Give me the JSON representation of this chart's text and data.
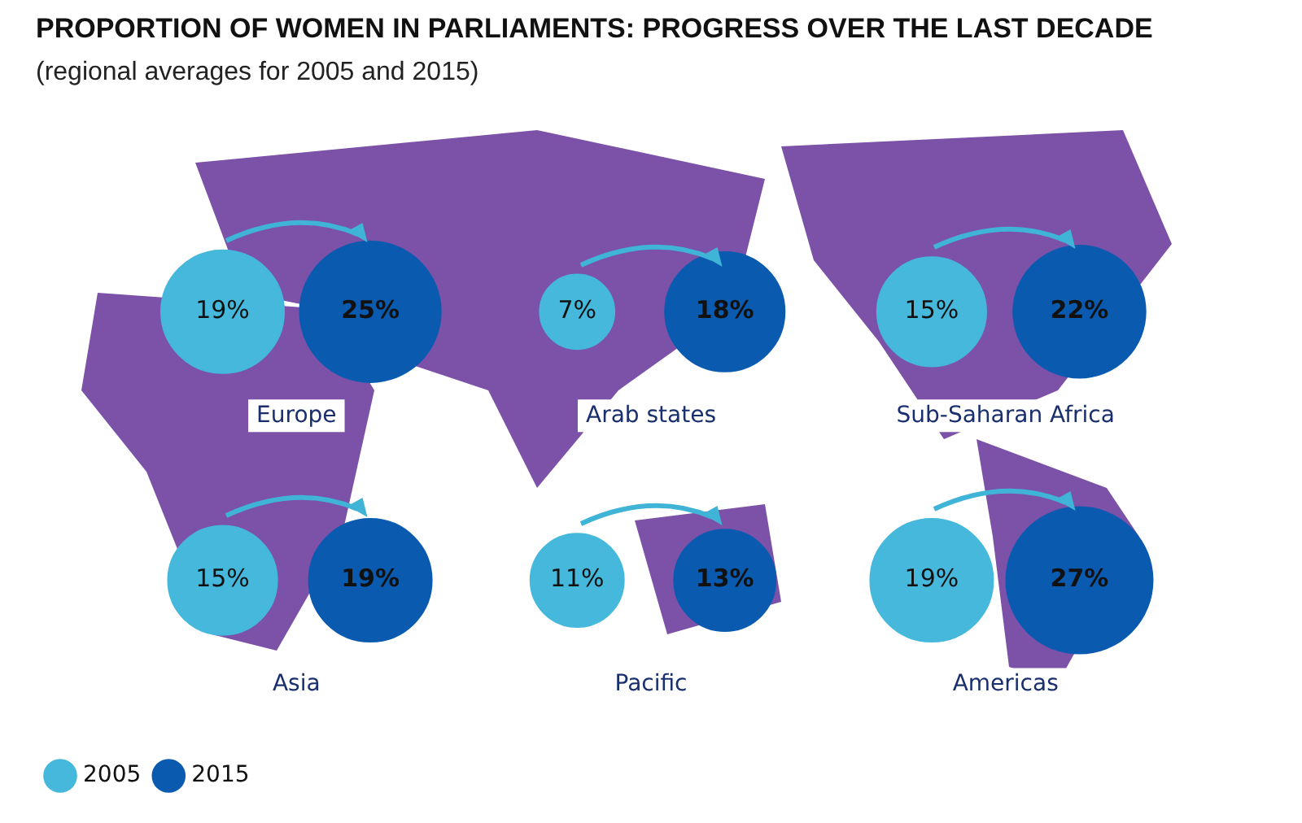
{
  "chart_data": {
    "type": "other",
    "title": "PROPORTION OF WOMEN IN PARLIAMENTS: PROGRESS OVER THE LAST DECADE",
    "subtitle": "(regional averages for 2005 and 2015)",
    "categories": [
      "Europe",
      "Arab states",
      "Sub-Saharan Africa",
      "Asia",
      "Pacific",
      "Americas"
    ],
    "series": [
      {
        "name": "2005",
        "color": "#45b8dc",
        "values": [
          19,
          7,
          15,
          15,
          11,
          19
        ],
        "value_labels": [
          "19%",
          "7%",
          "15%",
          "15%",
          "11%",
          "19%"
        ]
      },
      {
        "name": "2015",
        "color": "#0a5bb0",
        "values": [
          25,
          18,
          22,
          19,
          13,
          27
        ],
        "value_labels": [
          "25%",
          "18%",
          "22%",
          "19%",
          "13%",
          "27%"
        ]
      }
    ],
    "legend": "bottom left"
  }
}
